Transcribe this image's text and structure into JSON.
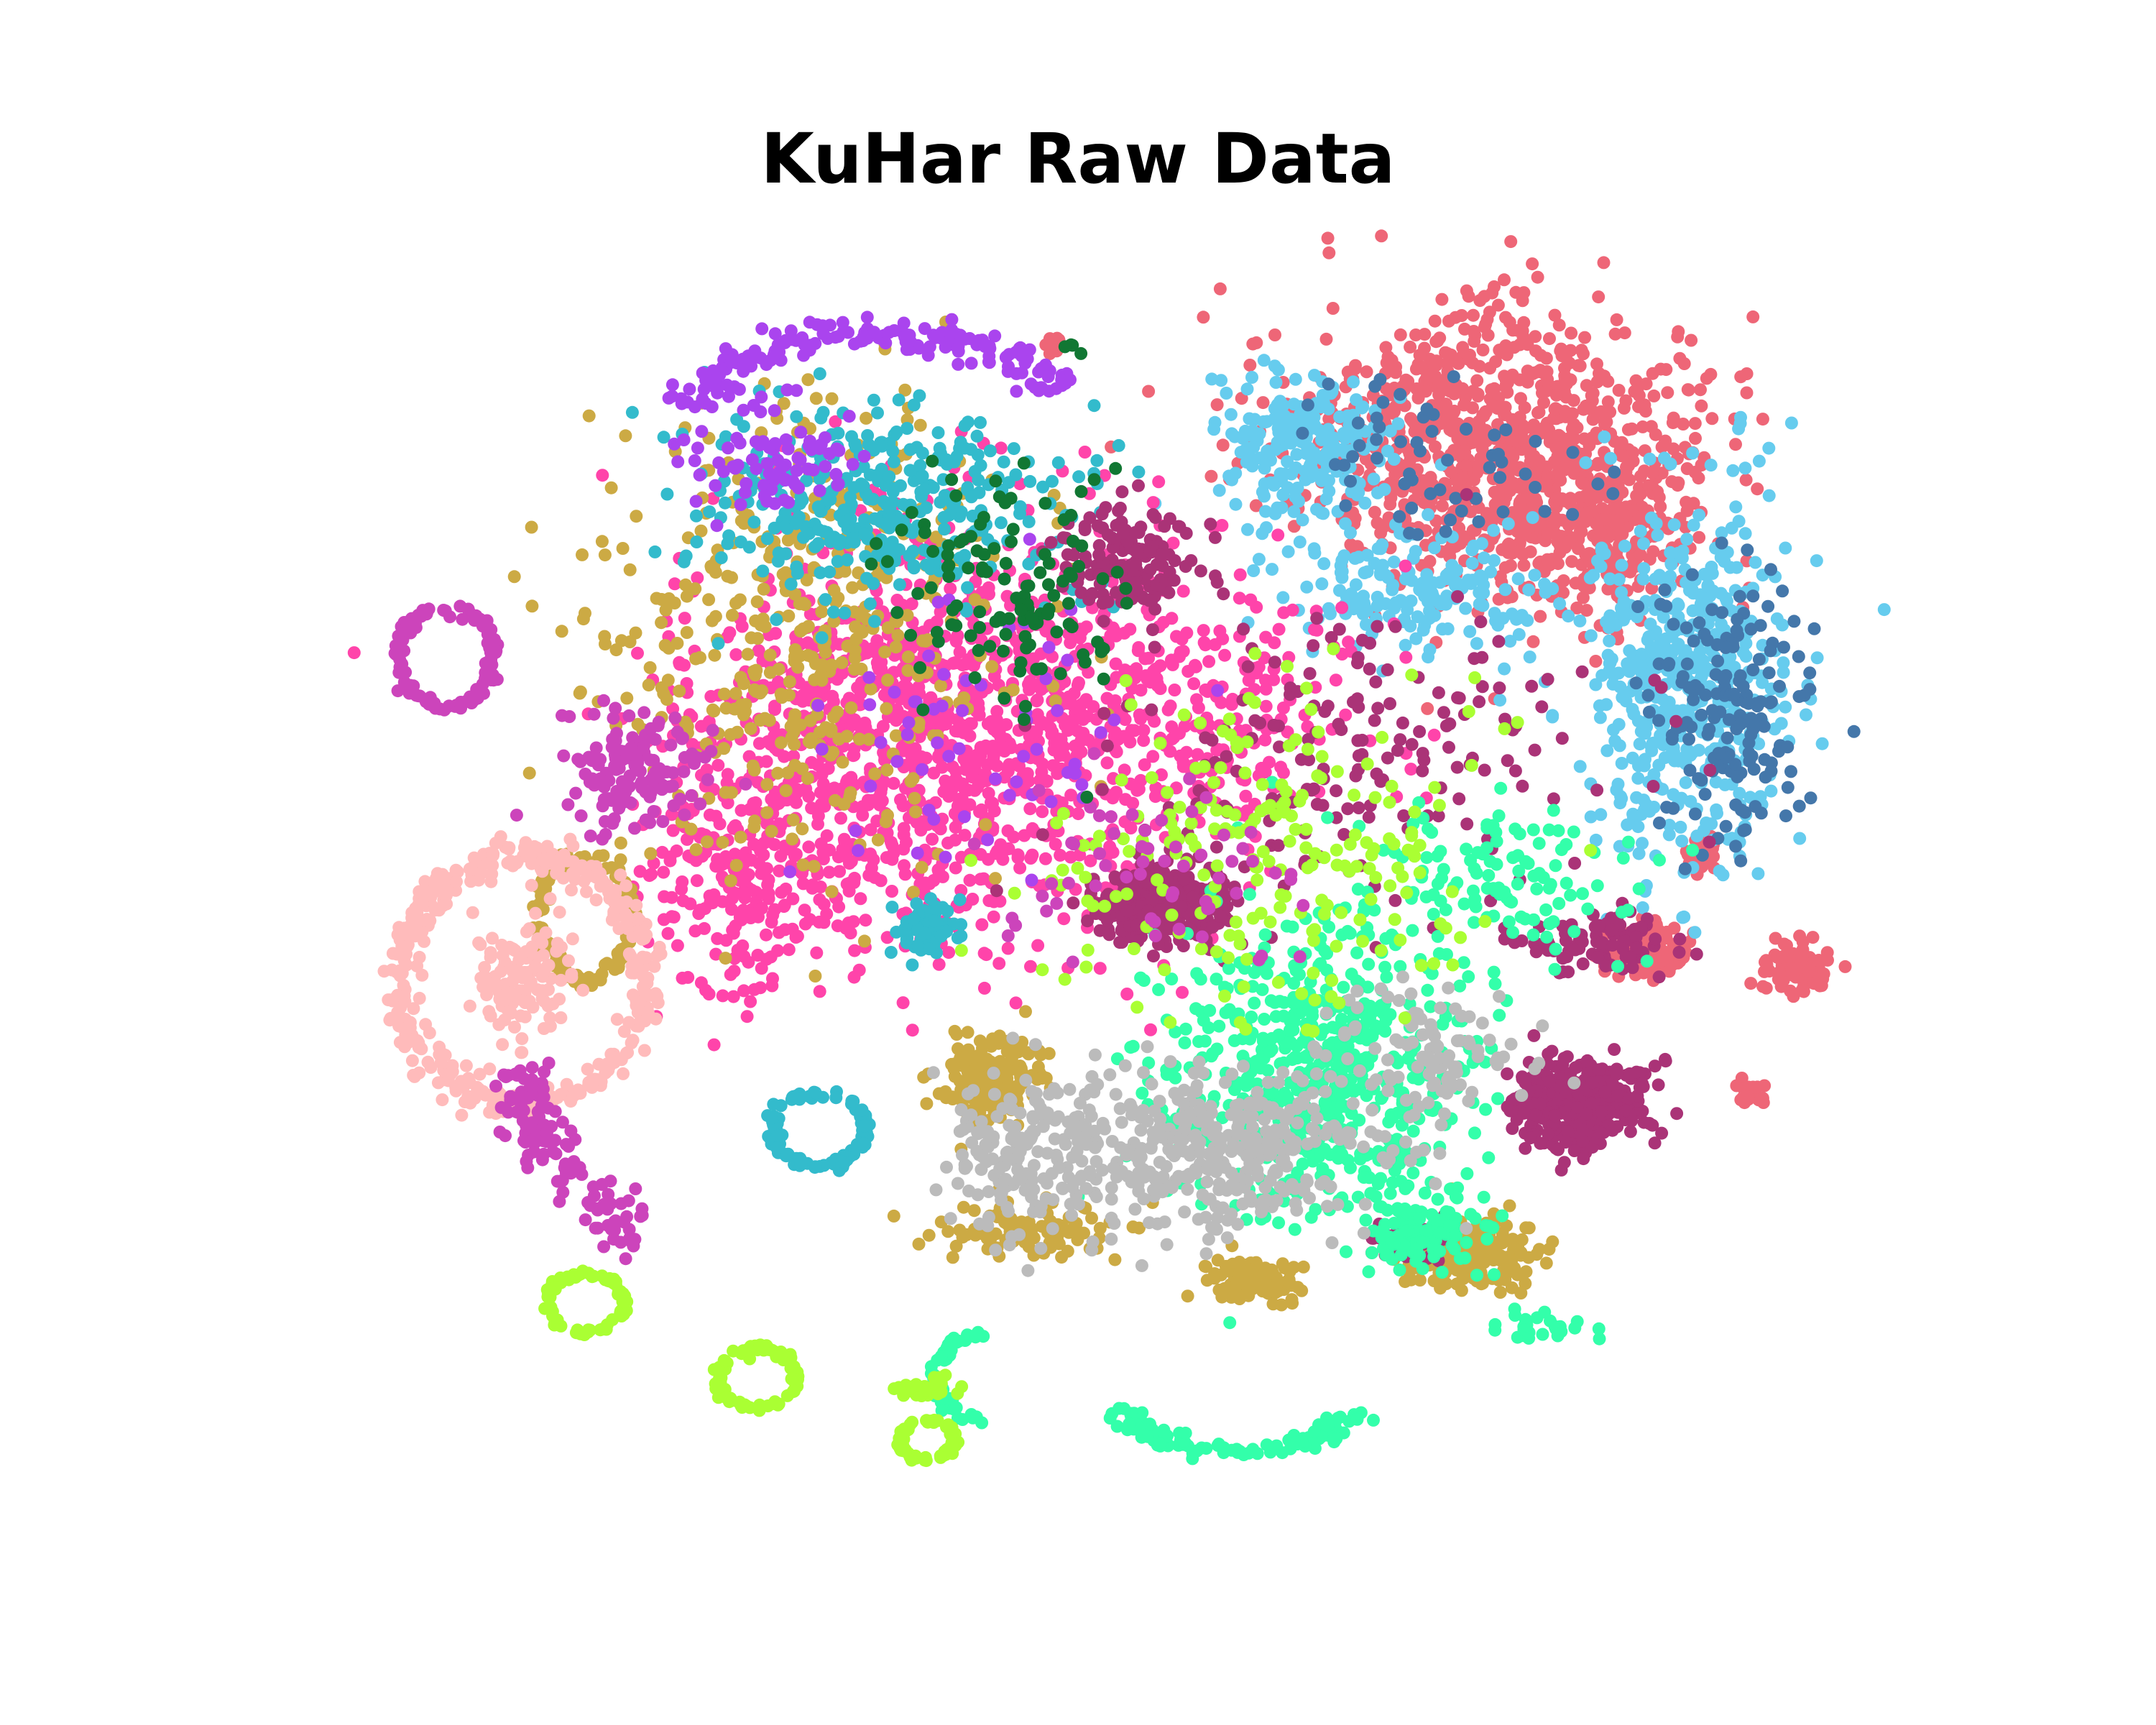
{
  "chart_data": {
    "type": "scatter",
    "title": "KuHar Raw Data",
    "xlabel": "",
    "ylabel": "",
    "xlim": [
      0,
      100
    ],
    "ylim": [
      0,
      100
    ],
    "axes_visible": false,
    "grid": false,
    "legend": "none",
    "series": [
      {
        "color": "#ee6677",
        "clusters": [
          {
            "shape": "blob",
            "cx": 74,
            "cy": 85,
            "rx": 12,
            "ry": 10,
            "n": 900
          },
          {
            "shape": "blob",
            "cx": 82,
            "cy": 78,
            "rx": 5,
            "ry": 6,
            "n": 220
          },
          {
            "shape": "blob",
            "cx": 84,
            "cy": 44,
            "rx": 2.5,
            "ry": 2,
            "n": 120
          },
          {
            "shape": "blob",
            "cx": 94,
            "cy": 43,
            "rx": 1.8,
            "ry": 2,
            "n": 90
          },
          {
            "shape": "blob",
            "cx": 88,
            "cy": 52,
            "rx": 1.2,
            "ry": 1.5,
            "n": 40
          },
          {
            "shape": "blob",
            "cx": 91,
            "cy": 33,
            "rx": 0.8,
            "ry": 0.8,
            "n": 25
          },
          {
            "shape": "blob",
            "cx": 46,
            "cy": 93,
            "rx": 0.6,
            "ry": 0.6,
            "n": 10
          }
        ]
      },
      {
        "color": "#66ccee",
        "clusters": [
          {
            "shape": "blob",
            "cx": 87,
            "cy": 66,
            "rx": 6,
            "ry": 13,
            "n": 520
          },
          {
            "shape": "blob",
            "cx": 62,
            "cy": 85,
            "rx": 5,
            "ry": 5,
            "n": 220
          },
          {
            "shape": "blob",
            "cx": 70,
            "cy": 73,
            "rx": 8,
            "ry": 5,
            "n": 180
          }
        ]
      },
      {
        "color": "#4477aa",
        "clusters": [
          {
            "shape": "blob",
            "cx": 90,
            "cy": 64,
            "rx": 5,
            "ry": 10,
            "n": 160
          },
          {
            "shape": "blob",
            "cx": 72,
            "cy": 83,
            "rx": 8,
            "ry": 6,
            "n": 60
          }
        ]
      },
      {
        "color": "#ff44aa",
        "clusters": [
          {
            "shape": "blob",
            "cx": 38,
            "cy": 62,
            "rx": 14,
            "ry": 15,
            "n": 1200
          },
          {
            "shape": "blob",
            "cx": 26,
            "cy": 50,
            "rx": 6,
            "ry": 8,
            "n": 200
          },
          {
            "shape": "blob",
            "cx": 55,
            "cy": 64,
            "rx": 10,
            "ry": 10,
            "n": 250
          }
        ]
      },
      {
        "color": "#ccaa44",
        "clusters": [
          {
            "shape": "blob",
            "cx": 30,
            "cy": 70,
            "rx": 12,
            "ry": 18,
            "n": 450
          },
          {
            "shape": "blob",
            "cx": 42,
            "cy": 34,
            "rx": 3,
            "ry": 3,
            "n": 160
          },
          {
            "shape": "blob",
            "cx": 59,
            "cy": 18,
            "rx": 2.5,
            "ry": 1.5,
            "n": 130
          },
          {
            "shape": "blob",
            "cx": 73,
            "cy": 20,
            "rx": 4,
            "ry": 2.5,
            "n": 180
          },
          {
            "shape": "ring",
            "cx": 16,
            "cy": 47,
            "rx": 3,
            "ry": 5,
            "n": 120
          },
          {
            "shape": "blob",
            "cx": 45,
            "cy": 22,
            "rx": 6,
            "ry": 2,
            "n": 100
          }
        ]
      },
      {
        "color": "#33bbcc",
        "clusters": [
          {
            "shape": "blob",
            "cx": 35,
            "cy": 80,
            "rx": 10,
            "ry": 7,
            "n": 350
          },
          {
            "shape": "ring",
            "cx": 31,
            "cy": 30,
            "rx": 3,
            "ry": 3,
            "n": 90
          },
          {
            "shape": "blob",
            "cx": 38,
            "cy": 46,
            "rx": 2,
            "ry": 2,
            "n": 60
          }
        ]
      },
      {
        "color": "#aa44ee",
        "clusters": [
          {
            "shape": "arc",
            "cx": 35,
            "cy": 84,
            "rx": 14,
            "ry": 10,
            "a0": 0.6,
            "a1": 2.7,
            "n": 180
          },
          {
            "shape": "blob",
            "cx": 28,
            "cy": 84,
            "rx": 5,
            "ry": 4,
            "n": 80
          },
          {
            "shape": "blob",
            "cx": 42,
            "cy": 62,
            "rx": 10,
            "ry": 10,
            "n": 60
          }
        ]
      },
      {
        "color": "#aa3377",
        "clusters": [
          {
            "shape": "blob",
            "cx": 53,
            "cy": 48,
            "rx": 4,
            "ry": 2.8,
            "n": 300
          },
          {
            "shape": "blob",
            "cx": 80,
            "cy": 32,
            "rx": 4,
            "ry": 3.2,
            "n": 320
          },
          {
            "shape": "blob",
            "cx": 51,
            "cy": 76,
            "rx": 4,
            "ry": 4,
            "n": 150
          },
          {
            "shape": "blob",
            "cx": 69,
            "cy": 21,
            "rx": 3,
            "ry": 1.5,
            "n": 60
          },
          {
            "shape": "blob",
            "cx": 81,
            "cy": 45,
            "rx": 4,
            "ry": 2.5,
            "n": 90
          },
          {
            "shape": "blob",
            "cx": 66,
            "cy": 60,
            "rx": 14,
            "ry": 10,
            "n": 180
          }
        ]
      },
      {
        "color": "#33ffaa",
        "clusters": [
          {
            "shape": "blob",
            "cx": 63,
            "cy": 35,
            "rx": 9,
            "ry": 11,
            "n": 600
          },
          {
            "shape": "blob",
            "cx": 70,
            "cy": 22,
            "rx": 4,
            "ry": 3,
            "n": 120
          },
          {
            "shape": "arc",
            "cx": 58,
            "cy": 9,
            "rx": 8,
            "ry": 5,
            "a0": 3.4,
            "a1": 6.0,
            "n": 110
          },
          {
            "shape": "arc",
            "cx": 42,
            "cy": 10,
            "rx": 3.5,
            "ry": 3.5,
            "a0": 1.6,
            "a1": 4.6,
            "n": 50
          },
          {
            "shape": "blob",
            "cx": 74,
            "cy": 50,
            "rx": 8,
            "ry": 6,
            "n": 120
          },
          {
            "shape": "blob",
            "cx": 77,
            "cy": 14,
            "rx": 3,
            "ry": 1,
            "n": 25
          }
        ]
      },
      {
        "color": "#bbbbbb",
        "clusters": [
          {
            "shape": "blob",
            "cx": 56,
            "cy": 28,
            "rx": 11,
            "ry": 6,
            "n": 420
          },
          {
            "shape": "blob",
            "cx": 44,
            "cy": 28,
            "rx": 4,
            "ry": 6,
            "n": 120
          },
          {
            "shape": "blob",
            "cx": 70,
            "cy": 36,
            "rx": 6,
            "ry": 5,
            "n": 100
          }
        ]
      },
      {
        "color": "#aaff33",
        "clusters": [
          {
            "shape": "ring",
            "cx": 16,
            "cy": 16,
            "rx": 2.5,
            "ry": 2.4,
            "n": 80
          },
          {
            "shape": "ring",
            "cx": 27,
            "cy": 10,
            "rx": 2.5,
            "ry": 2.4,
            "n": 80
          },
          {
            "shape": "ring",
            "cx": 38,
            "cy": 5,
            "rx": 1.8,
            "ry": 1.6,
            "n": 60
          },
          {
            "shape": "blob",
            "cx": 60,
            "cy": 52,
            "rx": 12,
            "ry": 12,
            "n": 220
          },
          {
            "shape": "blob",
            "cx": 38,
            "cy": 9,
            "rx": 2,
            "ry": 1,
            "n": 30
          }
        ]
      },
      {
        "color": "#ffbbbb",
        "clusters": [
          {
            "shape": "ring",
            "cx": 12,
            "cy": 42,
            "rx": 8,
            "ry": 10,
            "n": 420
          },
          {
            "shape": "blob",
            "cx": 12,
            "cy": 42,
            "rx": 3,
            "ry": 4,
            "n": 120
          }
        ]
      },
      {
        "color": "#cc44bb",
        "clusters": [
          {
            "shape": "ring",
            "cx": 7,
            "cy": 68,
            "rx": 3,
            "ry": 4,
            "n": 120
          },
          {
            "shape": "arc",
            "cx": 25,
            "cy": 40,
            "rx": 14,
            "ry": 20,
            "a0": 3.4,
            "a1": 4.3,
            "n": 120
          },
          {
            "shape": "blob",
            "cx": 19,
            "cy": 59,
            "rx": 4,
            "ry": 4,
            "n": 140
          },
          {
            "shape": "blob",
            "cx": 52,
            "cy": 50,
            "rx": 10,
            "ry": 8,
            "n": 60
          }
        ]
      },
      {
        "color": "#117733",
        "clusters": [
          {
            "shape": "blob",
            "cx": 44,
            "cy": 72,
            "rx": 7,
            "ry": 9,
            "n": 120
          },
          {
            "shape": "blob",
            "cx": 47,
            "cy": 93,
            "rx": 0.5,
            "ry": 0.5,
            "n": 4
          }
        ]
      }
    ]
  }
}
